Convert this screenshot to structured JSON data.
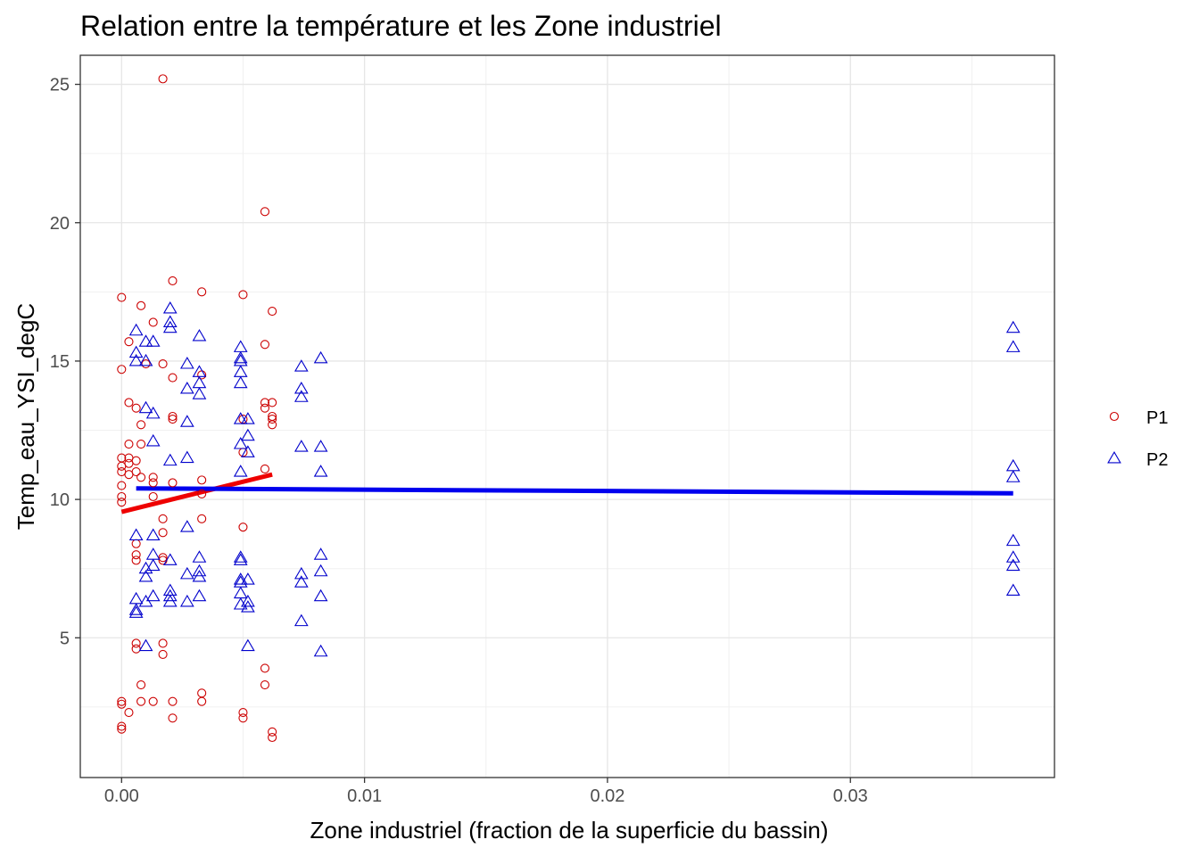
{
  "chart_data": {
    "type": "scatter",
    "title": "Relation entre la température et les Zone industriel",
    "xlabel": "Zone industriel (fraction de la superficie du bassin)",
    "ylabel": "Temp_eau_YSI_degC",
    "xlim": [
      -0.0017,
      0.0384
    ],
    "ylim": [
      -0.05,
      26.05
    ],
    "x_ticks": [
      {
        "value": 0.0,
        "label": "0.00"
      },
      {
        "value": 0.01,
        "label": "0.01"
      },
      {
        "value": 0.02,
        "label": "0.02"
      },
      {
        "value": 0.03,
        "label": "0.03"
      }
    ],
    "y_ticks": [
      {
        "value": 5,
        "label": "5"
      },
      {
        "value": 10,
        "label": "10"
      },
      {
        "value": 15,
        "label": "15"
      },
      {
        "value": 20,
        "label": "20"
      },
      {
        "value": 25,
        "label": "25"
      }
    ],
    "grid": true,
    "legend_position": "right",
    "series": [
      {
        "name": "P1",
        "marker": "circle",
        "color": "#cc0000",
        "points": [
          [
            0.0,
            17.3
          ],
          [
            0.0,
            14.7
          ],
          [
            0.0,
            11.5
          ],
          [
            0.0,
            11.2
          ],
          [
            0.0,
            11.0
          ],
          [
            0.0,
            10.5
          ],
          [
            0.0,
            10.1
          ],
          [
            0.0,
            9.9
          ],
          [
            0.0,
            2.7
          ],
          [
            0.0,
            2.6
          ],
          [
            0.0,
            1.8
          ],
          [
            0.0,
            1.7
          ],
          [
            0.0003,
            15.7
          ],
          [
            0.0003,
            13.5
          ],
          [
            0.0003,
            12.0
          ],
          [
            0.0003,
            11.5
          ],
          [
            0.0003,
            11.3
          ],
          [
            0.0003,
            10.9
          ],
          [
            0.0003,
            2.3
          ],
          [
            0.0006,
            13.3
          ],
          [
            0.0006,
            11.4
          ],
          [
            0.0006,
            11.0
          ],
          [
            0.0006,
            8.4
          ],
          [
            0.0006,
            8.0
          ],
          [
            0.0006,
            7.8
          ],
          [
            0.0006,
            4.8
          ],
          [
            0.0006,
            4.6
          ],
          [
            0.0008,
            17.0
          ],
          [
            0.0008,
            12.7
          ],
          [
            0.0008,
            12.0
          ],
          [
            0.0008,
            10.8
          ],
          [
            0.0008,
            3.3
          ],
          [
            0.0008,
            2.7
          ],
          [
            0.001,
            14.9
          ],
          [
            0.0013,
            16.4
          ],
          [
            0.0013,
            10.8
          ],
          [
            0.0013,
            10.6
          ],
          [
            0.0013,
            10.1
          ],
          [
            0.0013,
            2.7
          ],
          [
            0.0017,
            25.2
          ],
          [
            0.0017,
            14.9
          ],
          [
            0.0017,
            9.3
          ],
          [
            0.0017,
            8.8
          ],
          [
            0.0017,
            7.9
          ],
          [
            0.0017,
            7.8
          ],
          [
            0.0017,
            4.8
          ],
          [
            0.0017,
            4.4
          ],
          [
            0.0021,
            17.9
          ],
          [
            0.0021,
            14.4
          ],
          [
            0.0021,
            13.0
          ],
          [
            0.0021,
            12.9
          ],
          [
            0.0021,
            10.6
          ],
          [
            0.0021,
            2.7
          ],
          [
            0.0021,
            2.1
          ],
          [
            0.0033,
            17.5
          ],
          [
            0.0033,
            14.5
          ],
          [
            0.0033,
            10.7
          ],
          [
            0.0033,
            10.2
          ],
          [
            0.0033,
            9.3
          ],
          [
            0.0033,
            3.0
          ],
          [
            0.0033,
            2.7
          ],
          [
            0.005,
            17.4
          ],
          [
            0.005,
            12.9
          ],
          [
            0.005,
            11.7
          ],
          [
            0.005,
            9.0
          ],
          [
            0.005,
            2.3
          ],
          [
            0.005,
            2.1
          ],
          [
            0.0059,
            20.4
          ],
          [
            0.0059,
            15.6
          ],
          [
            0.0059,
            13.5
          ],
          [
            0.0059,
            13.3
          ],
          [
            0.0059,
            11.1
          ],
          [
            0.0059,
            3.9
          ],
          [
            0.0059,
            3.3
          ],
          [
            0.0062,
            16.8
          ],
          [
            0.0062,
            13.5
          ],
          [
            0.0062,
            13.0
          ],
          [
            0.0062,
            12.9
          ],
          [
            0.0062,
            12.7
          ],
          [
            0.0062,
            1.6
          ],
          [
            0.0062,
            1.4
          ]
        ]
      },
      {
        "name": "P2",
        "marker": "triangle",
        "color": "#0000cc",
        "points": [
          [
            0.0006,
            16.1
          ],
          [
            0.0006,
            15.3
          ],
          [
            0.0006,
            15.0
          ],
          [
            0.0006,
            8.7
          ],
          [
            0.0006,
            6.4
          ],
          [
            0.0006,
            6.0
          ],
          [
            0.0006,
            5.9
          ],
          [
            0.001,
            15.7
          ],
          [
            0.001,
            15.0
          ],
          [
            0.001,
            13.3
          ],
          [
            0.001,
            7.5
          ],
          [
            0.001,
            7.2
          ],
          [
            0.001,
            6.3
          ],
          [
            0.001,
            4.7
          ],
          [
            0.0013,
            15.7
          ],
          [
            0.0013,
            13.1
          ],
          [
            0.0013,
            12.1
          ],
          [
            0.0013,
            8.7
          ],
          [
            0.0013,
            8.0
          ],
          [
            0.0013,
            7.6
          ],
          [
            0.0013,
            6.5
          ],
          [
            0.002,
            16.9
          ],
          [
            0.002,
            16.4
          ],
          [
            0.002,
            16.2
          ],
          [
            0.002,
            11.4
          ],
          [
            0.002,
            7.8
          ],
          [
            0.002,
            6.7
          ],
          [
            0.002,
            6.5
          ],
          [
            0.002,
            6.3
          ],
          [
            0.0027,
            14.9
          ],
          [
            0.0027,
            14.0
          ],
          [
            0.0027,
            12.8
          ],
          [
            0.0027,
            11.5
          ],
          [
            0.0027,
            9.0
          ],
          [
            0.0027,
            7.3
          ],
          [
            0.0027,
            6.3
          ],
          [
            0.0032,
            15.9
          ],
          [
            0.0032,
            14.6
          ],
          [
            0.0032,
            14.2
          ],
          [
            0.0032,
            13.8
          ],
          [
            0.0032,
            7.9
          ],
          [
            0.0032,
            7.4
          ],
          [
            0.0032,
            7.2
          ],
          [
            0.0032,
            6.5
          ],
          [
            0.0049,
            15.5
          ],
          [
            0.0049,
            15.1
          ],
          [
            0.0049,
            15.0
          ],
          [
            0.0049,
            14.6
          ],
          [
            0.0049,
            14.2
          ],
          [
            0.0049,
            12.9
          ],
          [
            0.0049,
            12.0
          ],
          [
            0.0049,
            11.0
          ],
          [
            0.0049,
            7.9
          ],
          [
            0.0049,
            7.8
          ],
          [
            0.0049,
            7.1
          ],
          [
            0.0049,
            7.0
          ],
          [
            0.0049,
            6.6
          ],
          [
            0.0049,
            6.2
          ],
          [
            0.0052,
            12.9
          ],
          [
            0.0052,
            12.3
          ],
          [
            0.0052,
            11.7
          ],
          [
            0.0052,
            7.1
          ],
          [
            0.0052,
            6.3
          ],
          [
            0.0052,
            6.1
          ],
          [
            0.0052,
            4.7
          ],
          [
            0.0074,
            14.8
          ],
          [
            0.0074,
            14.0
          ],
          [
            0.0074,
            13.7
          ],
          [
            0.0074,
            11.9
          ],
          [
            0.0074,
            7.3
          ],
          [
            0.0074,
            7.0
          ],
          [
            0.0074,
            5.6
          ],
          [
            0.0082,
            15.1
          ],
          [
            0.0082,
            11.9
          ],
          [
            0.0082,
            11.0
          ],
          [
            0.0082,
            8.0
          ],
          [
            0.0082,
            7.4
          ],
          [
            0.0082,
            6.5
          ],
          [
            0.0082,
            4.5
          ],
          [
            0.0367,
            16.2
          ],
          [
            0.0367,
            15.5
          ],
          [
            0.0367,
            11.2
          ],
          [
            0.0367,
            10.8
          ],
          [
            0.0367,
            8.5
          ],
          [
            0.0367,
            7.9
          ],
          [
            0.0367,
            7.6
          ],
          [
            0.0367,
            6.7
          ]
        ]
      }
    ],
    "trend_lines": [
      {
        "series": "P1",
        "color": "#ee0000",
        "points": [
          [
            0.0,
            9.55
          ],
          [
            0.0062,
            10.9
          ]
        ]
      },
      {
        "series": "P2",
        "color": "#0000ee",
        "points": [
          [
            0.0006,
            10.4
          ],
          [
            0.0367,
            10.22
          ]
        ]
      }
    ],
    "legend": [
      {
        "label": "P1",
        "marker": "circle",
        "color": "#cc0000"
      },
      {
        "label": "P2",
        "marker": "triangle",
        "color": "#0000cc"
      }
    ]
  }
}
